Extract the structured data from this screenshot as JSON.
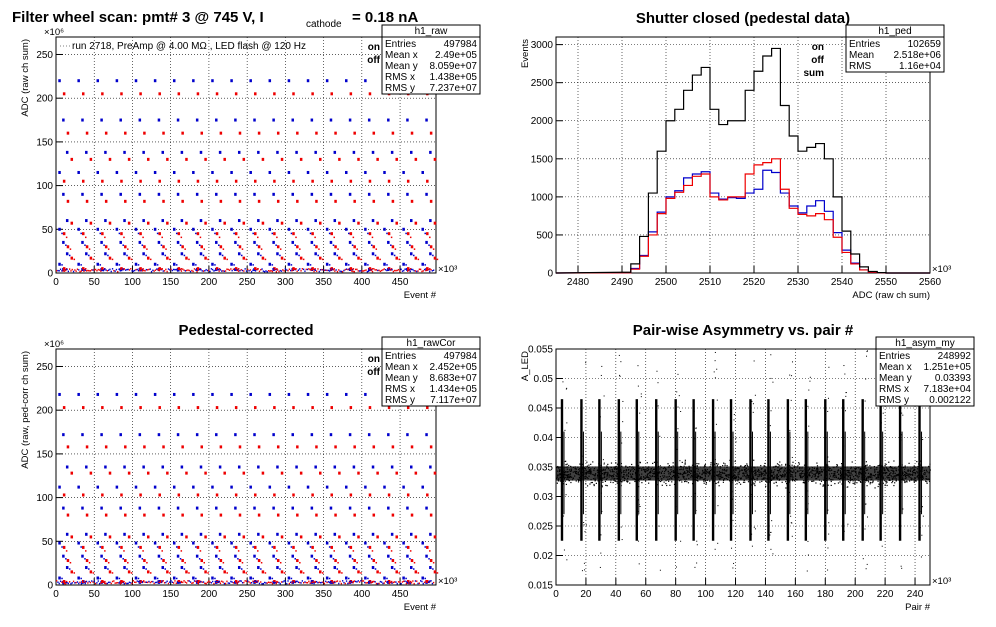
{
  "chart_data": [
    {
      "type": "scatter",
      "title": "Filter wheel scan: pmt#   3 @   745 V, I",
      "title_sub": "cathode",
      "title_tail": "= 0.18 nA",
      "annotation": "run 2718, PreAmp @ 4.00 MΩ , LED flash @  120 Hz",
      "xlabel": "Event #",
      "ylabel": "ADC (raw ch sum)",
      "xlim": [
        0,
        497
      ],
      "ylim": [
        0,
        270
      ],
      "x_exponent": "×10³",
      "y_exponent": "×10⁶",
      "xticks": [
        0,
        50,
        100,
        150,
        200,
        250,
        300,
        350,
        400,
        450
      ],
      "yticks": [
        0,
        50,
        100,
        150,
        200,
        250
      ],
      "legend": [
        {
          "label": "on",
          "color": "#0000cc"
        },
        {
          "label": "off",
          "color": "#ee0000"
        }
      ],
      "legend_position": "top-right",
      "grid": true,
      "stats_box": {
        "name": "h1_raw",
        "rows": [
          {
            "k": "Entries",
            "v": "497984"
          },
          {
            "k": "Mean x",
            "v": "2.49e+05"
          },
          {
            "k": "Mean y",
            "v": "8.059e+07"
          },
          {
            "k": "RMS x",
            "v": "1.438e+05"
          },
          {
            "k": "RMS y",
            "v": "7.237e+07"
          }
        ]
      },
      "series": [
        {
          "name": "on",
          "color": "#0000cc",
          "levels": [
            220,
            175,
            138,
            115,
            90,
            60,
            50,
            35,
            22,
            10,
            4
          ]
        },
        {
          "name": "off",
          "color": "#ee0000",
          "levels": [
            205,
            160,
            130,
            105,
            82,
            57,
            45,
            30,
            17,
            5
          ]
        }
      ],
      "period": 25
    },
    {
      "type": "line",
      "title": "Shutter closed (pedestal data)",
      "xlabel": "ADC (raw ch sum)",
      "ylabel": "Events",
      "xlim": [
        2475,
        2560
      ],
      "ylim": [
        0,
        3100
      ],
      "x_exponent": "×10³",
      "xticks": [
        2480,
        2490,
        2500,
        2510,
        2520,
        2530,
        2540,
        2550,
        2560
      ],
      "yticks": [
        0,
        500,
        1000,
        1500,
        2000,
        2500,
        3000
      ],
      "legend": [
        {
          "label": "on",
          "color": "#0000cc"
        },
        {
          "label": "off",
          "color": "#ee0000"
        },
        {
          "label": "sum",
          "color": "#000000"
        }
      ],
      "legend_position": "top-right",
      "grid": true,
      "stats_box": {
        "name": "h1_ped",
        "rows": [
          {
            "k": "Entries",
            "v": "102659"
          },
          {
            "k": "Mean",
            "v": "2.518e+06"
          },
          {
            "k": "RMS",
            "v": "1.16e+04"
          }
        ]
      },
      "x": [
        2490,
        2492,
        2494,
        2496,
        2498,
        2500,
        2502,
        2504,
        2506,
        2508,
        2510,
        2512,
        2514,
        2516,
        2518,
        2520,
        2522,
        2524,
        2526,
        2528,
        2530,
        2532,
        2534,
        2536,
        2538,
        2540,
        2542,
        2544,
        2546,
        2548,
        2550
      ],
      "series": [
        {
          "name": "on",
          "color": "#0000cc",
          "values": [
            5,
            60,
            230,
            540,
            800,
            1000,
            1080,
            1250,
            1300,
            1330,
            1050,
            970,
            990,
            980,
            1050,
            1100,
            1350,
            1320,
            1050,
            880,
            790,
            880,
            950,
            810,
            530,
            300,
            130,
            40,
            10,
            3,
            0
          ]
        },
        {
          "name": "off",
          "color": "#ee0000",
          "values": [
            3,
            50,
            220,
            500,
            780,
            980,
            1060,
            1150,
            1270,
            1300,
            1000,
            960,
            1000,
            1000,
            1300,
            1420,
            1450,
            1500,
            1100,
            850,
            770,
            750,
            780,
            700,
            470,
            270,
            120,
            40,
            10,
            3,
            0
          ]
        },
        {
          "name": "sum",
          "color": "#000000",
          "values": [
            10,
            120,
            480,
            1050,
            1600,
            2000,
            2150,
            2400,
            2600,
            2700,
            2150,
            1950,
            2000,
            2000,
            2400,
            2650,
            2850,
            2950,
            2200,
            1800,
            1600,
            1650,
            1700,
            1500,
            1000,
            550,
            250,
            80,
            20,
            5,
            0
          ]
        }
      ]
    },
    {
      "type": "scatter",
      "title": "Pedestal-corrected",
      "xlabel": "Event #",
      "ylabel": "ADC (raw, ped-corr ch sum)",
      "xlim": [
        0,
        497
      ],
      "ylim": [
        0,
        270
      ],
      "x_exponent": "×10³",
      "y_exponent": "×10⁶",
      "xticks": [
        0,
        50,
        100,
        150,
        200,
        250,
        300,
        350,
        400,
        450
      ],
      "yticks": [
        0,
        50,
        100,
        150,
        200,
        250
      ],
      "legend": [
        {
          "label": "on",
          "color": "#0000cc"
        },
        {
          "label": "off",
          "color": "#ee0000"
        }
      ],
      "legend_position": "top-right",
      "grid": true,
      "stats_box": {
        "name": "h1_rawCor",
        "rows": [
          {
            "k": "Entries",
            "v": "497984"
          },
          {
            "k": "Mean x",
            "v": "2.452e+05"
          },
          {
            "k": "Mean y",
            "v": "8.683e+07"
          },
          {
            "k": "RMS x",
            "v": "1.434e+05"
          },
          {
            "k": "RMS y",
            "v": "7.117e+07"
          }
        ]
      },
      "series": [
        {
          "name": "on",
          "color": "#0000cc",
          "levels": [
            218,
            172,
            135,
            112,
            88,
            58,
            48,
            33,
            20,
            8,
            3
          ]
        },
        {
          "name": "off",
          "color": "#ee0000",
          "levels": [
            203,
            158,
            128,
            103,
            80,
            55,
            43,
            28,
            15,
            4
          ]
        }
      ],
      "period": 25
    },
    {
      "type": "scatter",
      "title": "Pair-wise Asymmetry vs. pair #",
      "xlabel": "Pair #",
      "ylabel": "A_LED",
      "xlim": [
        0,
        250
      ],
      "ylim": [
        0.015,
        0.055
      ],
      "x_exponent": "×10³",
      "xticks": [
        0,
        20,
        40,
        60,
        80,
        100,
        120,
        140,
        160,
        180,
        200,
        220,
        240
      ],
      "yticks": [
        0.015,
        0.02,
        0.025,
        0.03,
        0.035,
        0.04,
        0.045,
        0.05,
        0.055
      ],
      "grid": true,
      "stats_box": {
        "name": "h1_asym_my",
        "rows": [
          {
            "k": "Entries",
            "v": "248992"
          },
          {
            "k": "Mean x",
            "v": "1.251e+05"
          },
          {
            "k": "Mean y",
            "v": "0.03393"
          },
          {
            "k": "RMS x",
            "v": "7.183e+04"
          },
          {
            "k": "RMS y",
            "v": "0.002122"
          }
        ]
      },
      "band": {
        "center": 0.0339,
        "halfwidth": 0.0015
      },
      "spike_x": [
        4,
        17,
        29,
        42,
        54,
        67,
        80,
        92,
        105,
        117,
        130,
        142,
        155,
        167,
        180,
        192,
        205,
        217,
        230,
        243
      ]
    }
  ]
}
